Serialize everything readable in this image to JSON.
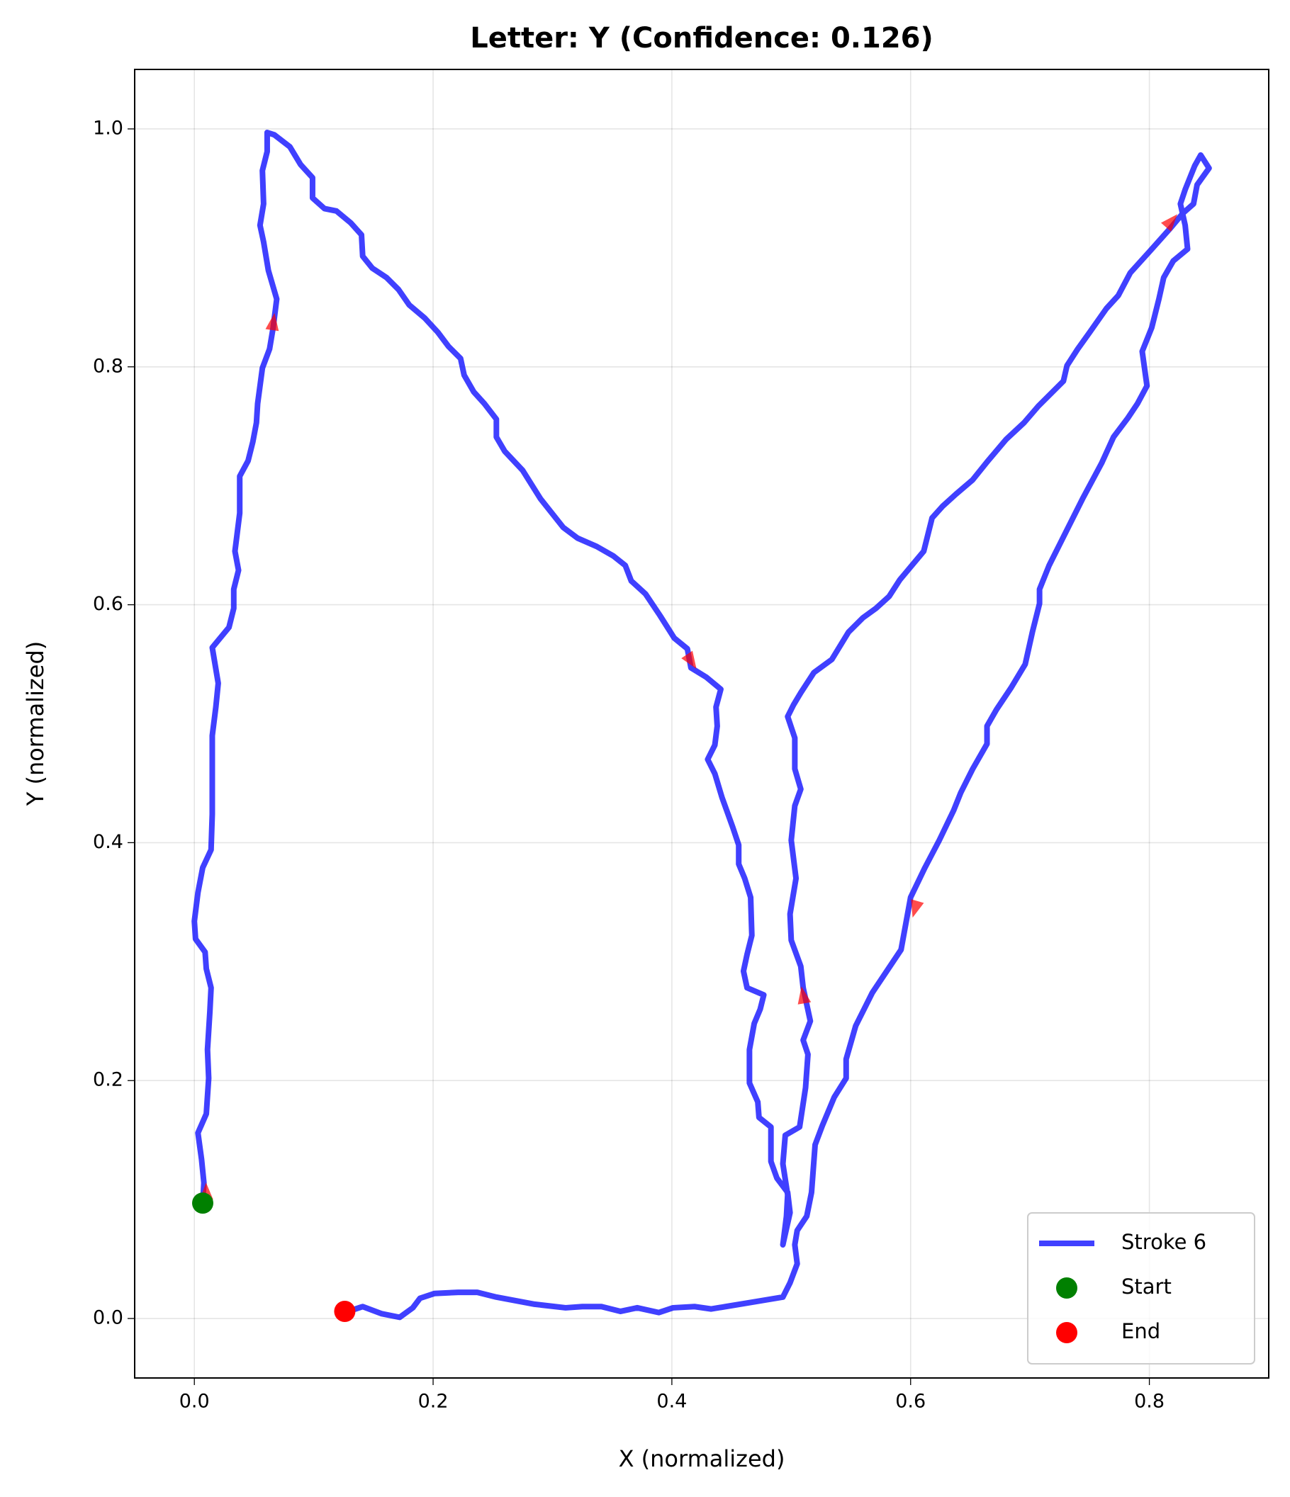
{
  "chart_data": {
    "type": "line",
    "title": "Letter: Y (Confidence: 0.126)",
    "xlabel": "X (normalized)",
    "ylabel": "Y (normalized)",
    "xlim": [
      -0.05,
      0.9
    ],
    "ylim": [
      -0.05,
      1.05
    ],
    "xticks": [
      {
        "value": 0,
        "label": "0.0"
      },
      0.2,
      0.4,
      0.6,
      0.8
    ],
    "yticks": [
      {
        "value": 0,
        "label": "0.0"
      },
      0.2,
      0.4,
      0.6,
      0.8,
      {
        "value": 1,
        "label": "1.0"
      }
    ],
    "grid": true,
    "legend": "lower right",
    "series": [
      {
        "name": "Stroke 6",
        "color": "#0000ff",
        "x": [
          0.007,
          0.008,
          0.006,
          0.003,
          0.01,
          0.012,
          0.011,
          0.013,
          0.014,
          0.01,
          0.009,
          0.001,
          0.0,
          0.003,
          0.007,
          0.014,
          0.015,
          0.015,
          0.018,
          0.02,
          0.015,
          0.029,
          0.033,
          0.033,
          0.037,
          0.034,
          0.038,
          0.038,
          0.045,
          0.049,
          0.052,
          0.053,
          0.057,
          0.063,
          0.066,
          0.069,
          0.062,
          0.058,
          0.055,
          0.058,
          0.057,
          0.061,
          0.061,
          0.067,
          0.08,
          0.089,
          0.099,
          0.099,
          0.109,
          0.119,
          0.131,
          0.14,
          0.141,
          0.149,
          0.161,
          0.171,
          0.18,
          0.193,
          0.204,
          0.213,
          0.223,
          0.226,
          0.234,
          0.243,
          0.253,
          0.253,
          0.26,
          0.275,
          0.29,
          0.309,
          0.321,
          0.337,
          0.351,
          0.361,
          0.366,
          0.378,
          0.39,
          0.402,
          0.413,
          0.416,
          0.429,
          0.441,
          0.437,
          0.438,
          0.436,
          0.43,
          0.436,
          0.442,
          0.451,
          0.456,
          0.456,
          0.461,
          0.466,
          0.467,
          0.463,
          0.46,
          0.463,
          0.477,
          0.474,
          0.469,
          0.465,
          0.465,
          0.472,
          0.473,
          0.483,
          0.483,
          0.488,
          0.497,
          0.499,
          0.493,
          0.496,
          0.497,
          0.493,
          0.495,
          0.507,
          0.512,
          0.514,
          0.51,
          0.516,
          0.51,
          0.508,
          0.5,
          0.499,
          0.504,
          0.5,
          0.503,
          0.508,
          0.503,
          0.503,
          0.497,
          0.502,
          0.508,
          0.519,
          0.534,
          0.548,
          0.56,
          0.571,
          0.582,
          0.591,
          0.601,
          0.611,
          0.618,
          0.627,
          0.638,
          0.652,
          0.664,
          0.68,
          0.695,
          0.707,
          0.728,
          0.731,
          0.74,
          0.75,
          0.764,
          0.774,
          0.784,
          0.802,
          0.818,
          0.828,
          0.837,
          0.84,
          0.85,
          0.843,
          0.838,
          0.83,
          0.826,
          0.83,
          0.832,
          0.82,
          0.812,
          0.808,
          0.802,
          0.794,
          0.798,
          0.79,
          0.782,
          0.77,
          0.76,
          0.744,
          0.732,
          0.716,
          0.708,
          0.708,
          0.702,
          0.696,
          0.684,
          0.672,
          0.664,
          0.664,
          0.652,
          0.642,
          0.636,
          0.624,
          0.612,
          0.6,
          0.592,
          0.58,
          0.568,
          0.554,
          0.546,
          0.546,
          0.536,
          0.526,
          0.52,
          0.517,
          0.513,
          0.505,
          0.503,
          0.505,
          0.499,
          0.493,
          0.469,
          0.445,
          0.433,
          0.419,
          0.401,
          0.389,
          0.371,
          0.357,
          0.341,
          0.325,
          0.311,
          0.285,
          0.253,
          0.237,
          0.221,
          0.201,
          0.189,
          0.183,
          0.172,
          0.157,
          0.141,
          0.129,
          0.126
        ],
        "y": [
          0.097,
          0.114,
          0.134,
          0.156,
          0.172,
          0.202,
          0.226,
          0.258,
          0.278,
          0.294,
          0.308,
          0.319,
          0.334,
          0.358,
          0.379,
          0.394,
          0.424,
          0.49,
          0.514,
          0.534,
          0.564,
          0.581,
          0.597,
          0.613,
          0.629,
          0.645,
          0.677,
          0.708,
          0.721,
          0.737,
          0.753,
          0.769,
          0.799,
          0.815,
          0.833,
          0.857,
          0.881,
          0.905,
          0.919,
          0.937,
          0.965,
          0.981,
          0.997,
          0.995,
          0.985,
          0.97,
          0.959,
          0.942,
          0.933,
          0.931,
          0.921,
          0.911,
          0.893,
          0.883,
          0.875,
          0.865,
          0.852,
          0.841,
          0.829,
          0.817,
          0.807,
          0.793,
          0.779,
          0.769,
          0.756,
          0.741,
          0.729,
          0.713,
          0.689,
          0.665,
          0.656,
          0.649,
          0.641,
          0.633,
          0.62,
          0.609,
          0.591,
          0.572,
          0.563,
          0.547,
          0.539,
          0.529,
          0.514,
          0.498,
          0.482,
          0.47,
          0.458,
          0.438,
          0.413,
          0.398,
          0.382,
          0.37,
          0.354,
          0.322,
          0.306,
          0.292,
          0.278,
          0.272,
          0.26,
          0.248,
          0.226,
          0.198,
          0.182,
          0.169,
          0.161,
          0.132,
          0.118,
          0.106,
          0.089,
          0.062,
          0.086,
          0.104,
          0.13,
          0.154,
          0.161,
          0.194,
          0.222,
          0.234,
          0.25,
          0.278,
          0.296,
          0.318,
          0.34,
          0.37,
          0.402,
          0.431,
          0.445,
          0.462,
          0.488,
          0.506,
          0.516,
          0.526,
          0.543,
          0.554,
          0.577,
          0.589,
          0.597,
          0.607,
          0.621,
          0.633,
          0.645,
          0.673,
          0.683,
          0.693,
          0.705,
          0.72,
          0.739,
          0.753,
          0.767,
          0.788,
          0.801,
          0.815,
          0.829,
          0.849,
          0.86,
          0.879,
          0.899,
          0.917,
          0.929,
          0.937,
          0.953,
          0.967,
          0.978,
          0.969,
          0.949,
          0.937,
          0.919,
          0.899,
          0.889,
          0.875,
          0.857,
          0.833,
          0.813,
          0.784,
          0.769,
          0.757,
          0.741,
          0.719,
          0.689,
          0.665,
          0.633,
          0.613,
          0.601,
          0.577,
          0.55,
          0.53,
          0.512,
          0.498,
          0.483,
          0.462,
          0.442,
          0.427,
          0.402,
          0.379,
          0.354,
          0.31,
          0.292,
          0.274,
          0.246,
          0.218,
          0.202,
          0.186,
          0.162,
          0.146,
          0.106,
          0.086,
          0.074,
          0.062,
          0.046,
          0.03,
          0.018,
          0.014,
          0.01,
          0.008,
          0.01,
          0.009,
          0.005,
          0.009,
          0.006,
          0.01,
          0.01,
          0.009,
          0.012,
          0.018,
          0.022,
          0.022,
          0.021,
          0.017,
          0.009,
          0.001,
          0.004,
          0.01,
          0.006,
          0.006
        ]
      },
      {
        "name": "Start",
        "color": "#008000",
        "x": [
          0.007
        ],
        "y": [
          0.097
        ]
      },
      {
        "name": "End",
        "color": "#ff0000",
        "x": [
          0.126
        ],
        "y": [
          0.006
        ]
      }
    ],
    "arrows": {
      "color": "#ff0000",
      "x": [
        0.01,
        0.066,
        0.416,
        0.51,
        0.604,
        0.818
      ],
      "y": [
        0.106,
        0.837,
        0.553,
        0.271,
        0.345,
        0.922
      ]
    }
  }
}
